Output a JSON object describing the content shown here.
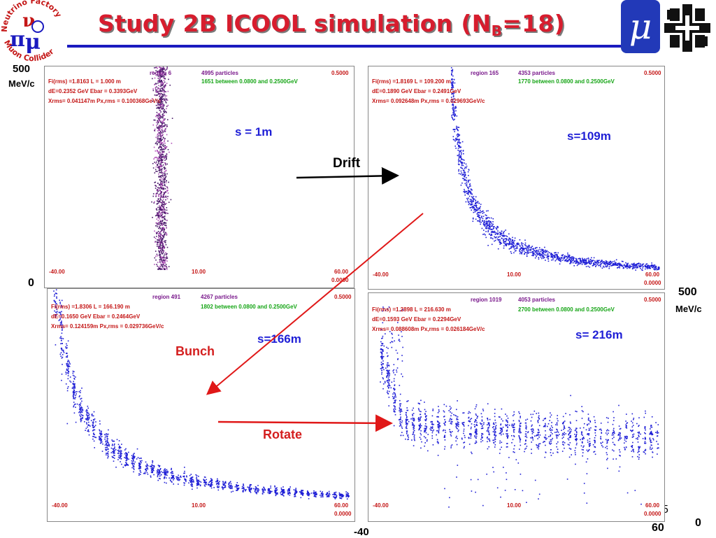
{
  "title": {
    "main": "Study 2B ICOOL simulation (N",
    "sub": "B",
    "tail": "=18)"
  },
  "logo": {
    "left_top": "Neutrino Factory",
    "left_bottom": "Muon Collider",
    "mu": "μ"
  },
  "axis_labels": {
    "left_top_value": "500",
    "left_top_unit": "MeV/c",
    "left_zero": "0",
    "right_top_value": "500",
    "right_top_unit": "MeV/c",
    "right_zero": "0",
    "bottom_left": "-40",
    "bottom_right": "60",
    "partial_digit": "5"
  },
  "annotations": {
    "drift": "Drift",
    "bunch": "Bunch",
    "rotate": "Rotate"
  },
  "colors": {
    "title": "#d71d2e",
    "particles": "#1f1fd6",
    "arrow_red": "#e01818",
    "arrow_black": "#000000",
    "rule": "#1a1abf"
  },
  "chart_data": [
    {
      "type": "scatter",
      "panel": "top-left",
      "s_label": "s = 1m",
      "region": "region   6",
      "particles": "4995 particles",
      "between": "1651 between 0.0800 and 0.2500GeV",
      "stats": [
        "Fi(rms) =1.8163     L =   1.000 m",
        "dE=0.2352 GeV    Ebar =  0.3393GeV",
        "Xrms= 0.041147m     Px,rms = 0.100368GeV/c"
      ],
      "xlim": [
        -40,
        60
      ],
      "ylim": [
        0,
        0.5
      ],
      "tick_labels": {
        "xmin": "-40.00",
        "xmid": "10.00",
        "xmax": "60.00",
        "ymax": "0.5000",
        "ymin": "0.0000"
      },
      "distribution": "narrow vertical band centered near x=-3 spanning full momentum range",
      "point_color": "#4a1a6a"
    },
    {
      "type": "scatter",
      "panel": "top-right",
      "s_label": "s=109m",
      "region": "region   165",
      "particles": "4353 particles",
      "between": "1770 between 0.0800 and 0.2500GeV",
      "stats": [
        "Fi(rms) =1.8169     L = 109.200 m",
        "dE=0.1890 GeV    Ebar =  0.2491GeV",
        "Xrms= 0.092648m     Px,rms = 0.029693GeV/c"
      ],
      "xlim": [
        -40,
        60
      ],
      "ylim": [
        0,
        0.5
      ],
      "tick_labels": {
        "xmin": "-40.00",
        "xmid": "10.00",
        "xmax": "60.00",
        "ymax": "0.5000",
        "ymin": "0.0000"
      },
      "distribution": "hyperbolic curve from high momentum at x=-13 down to low momentum at x=60",
      "point_color": "#1f1fd6"
    },
    {
      "type": "scatter",
      "panel": "bottom-left",
      "s_label": "s=166m",
      "region": "region   491",
      "particles": "4267 particles",
      "between": "1802 between 0.0800 and 0.2500GeV",
      "stats": [
        "Fi(rms) =1.8306     L = 166.190 m",
        "dE=0.1650 GeV    Ebar =  0.2464GeV",
        "Xrms= 0.124159m     Px,rms = 0.029736GeV/c"
      ],
      "xlim": [
        -40,
        60
      ],
      "ylim": [
        0,
        0.5
      ],
      "tick_labels": {
        "xmin": "-40.00",
        "xmid": "10.00",
        "xmax": "60.00",
        "ymax": "0.5000",
        "ymin": "0.0000"
      },
      "distribution": "bunched hyperbolic band with vertical micro-bunch striping",
      "point_color": "#1f1fd6"
    },
    {
      "type": "scatter",
      "panel": "bottom-right",
      "s_label": "s= 216m",
      "region": "region   1019",
      "particles": "4053 particles",
      "between": "2700 between 0.0800 and 0.2500GeV",
      "stats": [
        "Fi(rms) =1.2898     L = 216.630 m",
        "dE=0.1593 GeV    Ebar =  0.2294GeV",
        "Xrms= 0.088608m     Px,rms = 0.026184GeV/c"
      ],
      "xlim": [
        -40,
        60
      ],
      "ylim": [
        0,
        0.5
      ],
      "tick_labels": {
        "xmin": "-40.00",
        "xmid": "10.00",
        "xmax": "60.00",
        "ymax": "0.5000",
        "ymin": "0.0000"
      },
      "distribution": "phase-rotated bunches: flattened momentum band around 0.2 GeV with vertical stripes",
      "point_color": "#1f1fd6"
    }
  ]
}
